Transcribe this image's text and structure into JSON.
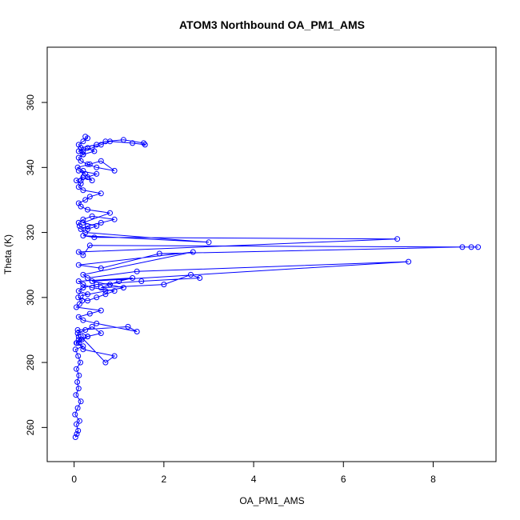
{
  "chart_data": {
    "type": "scatter",
    "title": "ATOM3 Northbound OA_PM1_AMS",
    "xlabel": "OA_PM1_AMS",
    "ylabel": "Theta (K)",
    "xlim": [
      -0.6,
      9.4
    ],
    "ylim": [
      249.5,
      377
    ],
    "xticks": [
      0,
      2,
      4,
      6,
      8
    ],
    "yticks": [
      260,
      280,
      300,
      320,
      340,
      360
    ],
    "grid": false,
    "legend": "none",
    "style": "line with open circle markers",
    "color": "#0000ff",
    "series": [
      {
        "x": [
          0.03,
          0.06,
          0.09,
          0.05,
          0.12,
          0.02,
          0.08,
          0.15,
          0.04,
          0.1,
          0.07,
          0.11,
          0.05,
          0.14,
          0.09,
          0.03,
          0.2,
          0.06,
          0.17,
          0.1,
          0.08,
          0.25,
          0.4,
          0.6,
          0.3,
          0.1,
          0.05,
          0.15,
          0.7,
          0.9,
          0.2,
          0.1,
          0.3,
          0.08,
          1.2,
          1.4,
          0.5,
          0.2,
          0.1,
          0.35,
          0.6,
          0.05,
          0.12,
          0.18,
          0.09,
          0.3,
          0.5,
          0.7,
          0.9,
          0.4,
          0.2,
          0.1,
          1.3,
          1.0,
          0.8,
          0.6,
          2.0,
          2.6,
          2.8,
          1.5,
          0.5,
          0.2,
          0.1,
          0.3,
          0.15,
          0.7,
          1.1,
          0.4,
          7.45,
          1.4,
          0.3,
          0.2,
          2.65,
          0.1,
          0.6,
          1.9,
          8.65,
          8.85,
          9.0,
          0.35,
          0.2,
          0.1,
          7.2,
          0.45,
          0.2,
          3.0,
          0.25,
          0.15,
          0.3,
          0.6,
          0.9,
          0.4,
          0.2,
          0.1,
          0.12,
          0.3,
          0.5,
          0.2,
          0.8,
          0.3,
          0.15,
          0.1,
          0.25,
          0.35,
          0.6,
          0.2,
          0.1,
          0.15,
          0.05,
          0.2,
          0.4,
          0.25,
          0.1,
          0.5,
          0.3,
          0.15,
          0.2,
          0.08,
          0.35,
          0.6,
          0.9,
          0.5,
          0.3,
          0.15,
          0.1,
          0.2,
          0.45,
          0.3,
          0.1,
          0.2,
          0.15,
          0.5,
          0.7,
          1.1,
          1.55,
          1.58,
          1.3,
          0.8,
          0.6,
          0.4,
          0.2,
          0.15,
          0.1,
          0.2,
          0.3,
          0.25
        ],
        "y": [
          257,
          258,
          259,
          261,
          262,
          264,
          266,
          268,
          270,
          272,
          274,
          276,
          278,
          280,
          282,
          284,
          285,
          286,
          287,
          288,
          289,
          290,
          291,
          289,
          288,
          287,
          286,
          288,
          280,
          282,
          284,
          286,
          288,
          290,
          291,
          289.5,
          292,
          293,
          294,
          295,
          296,
          297,
          298,
          299,
          300,
          299,
          300,
          301,
          302,
          303,
          304,
          305,
          306,
          305,
          304,
          303,
          304,
          307,
          306,
          305,
          304,
          303,
          302,
          301,
          300.5,
          302,
          303,
          305,
          311,
          308,
          306,
          307,
          314,
          310,
          309,
          313.5,
          315.5,
          315.5,
          315.5,
          316,
          313,
          314,
          318,
          318.5,
          319,
          317,
          320,
          321,
          322,
          323,
          324,
          325,
          324,
          323,
          322,
          321,
          322,
          323,
          326,
          327,
          328,
          329,
          330,
          331,
          332,
          333,
          334,
          335,
          336,
          337,
          336,
          338,
          339,
          338,
          337,
          336,
          339,
          340,
          341,
          342,
          339,
          340,
          341,
          342,
          343,
          344,
          345,
          346,
          345,
          344,
          346,
          347,
          348,
          348.5,
          347.5,
          347,
          347.5,
          348,
          347,
          346,
          345,
          346,
          347,
          348,
          349,
          349.5
        ]
      }
    ]
  }
}
